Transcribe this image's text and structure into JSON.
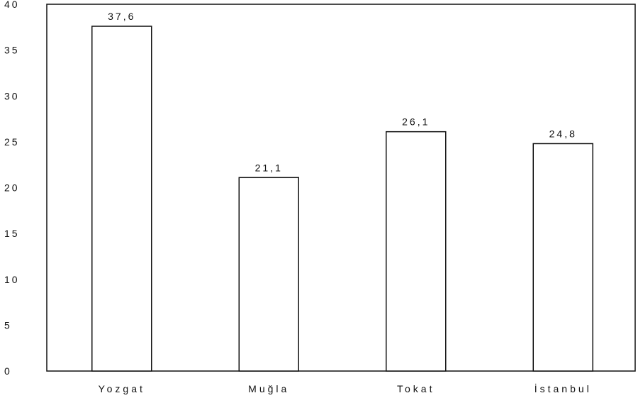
{
  "chart_data": {
    "type": "bar",
    "categories": [
      "Yozgat",
      "Muğla",
      "Tokat",
      "İstanbul"
    ],
    "values": [
      37.6,
      21.1,
      26.1,
      24.8
    ],
    "value_labels": [
      "37,6",
      "21,1",
      "26,1",
      "24,8"
    ],
    "ylim": [
      0,
      40
    ],
    "yticks": [
      0,
      5,
      10,
      15,
      20,
      25,
      30,
      35,
      40
    ],
    "ytick_labels": [
      "0",
      "5",
      "10",
      "15",
      "20",
      "25",
      "30",
      "35",
      "40"
    ],
    "grid": false,
    "legend": "none",
    "bar_fill": "#ffffff",
    "bar_stroke": "#111111"
  }
}
